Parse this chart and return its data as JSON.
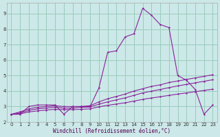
{
  "xlabel": "Windchill (Refroidissement éolien,°C)",
  "xlim": [
    -0.5,
    23.5
  ],
  "ylim": [
    2.0,
    9.7
  ],
  "yticks": [
    2,
    3,
    4,
    5,
    6,
    7,
    8,
    9
  ],
  "xticks": [
    0,
    1,
    2,
    3,
    4,
    5,
    6,
    7,
    8,
    9,
    10,
    11,
    12,
    13,
    14,
    15,
    16,
    17,
    18,
    19,
    20,
    21,
    22,
    23
  ],
  "bg_color": "#cce8e8",
  "grid_color": "#99ccbb",
  "line_color": "#882299",
  "curve_x": [
    0,
    1,
    2,
    3,
    4,
    5,
    6,
    7,
    8,
    9,
    10,
    11,
    12,
    13,
    14,
    15,
    16,
    17,
    18,
    19,
    20,
    21,
    22,
    23
  ],
  "curve_y": [
    2.5,
    2.5,
    3.0,
    3.1,
    3.1,
    3.1,
    2.5,
    3.0,
    3.0,
    3.0,
    4.2,
    6.5,
    6.6,
    7.5,
    7.7,
    9.35,
    8.9,
    8.3,
    8.1,
    5.0,
    4.7,
    4.1,
    2.5,
    3.1
  ],
  "line2_x": [
    0,
    1,
    2,
    3,
    4,
    5,
    6,
    7,
    8,
    9,
    10,
    11,
    12,
    13,
    14,
    15,
    16,
    17,
    18,
    19,
    20,
    21,
    22,
    23
  ],
  "line2_y": [
    2.5,
    2.65,
    2.85,
    2.95,
    3.0,
    3.05,
    3.0,
    3.0,
    3.0,
    3.05,
    3.3,
    3.5,
    3.65,
    3.8,
    4.0,
    4.15,
    4.3,
    4.4,
    4.55,
    4.65,
    4.75,
    4.85,
    4.95,
    5.05
  ],
  "line3_x": [
    0,
    1,
    2,
    3,
    4,
    5,
    6,
    7,
    8,
    9,
    10,
    11,
    12,
    13,
    14,
    15,
    16,
    17,
    18,
    19,
    20,
    21,
    22,
    23
  ],
  "line3_y": [
    2.5,
    2.58,
    2.75,
    2.85,
    2.9,
    2.95,
    2.9,
    2.9,
    2.95,
    2.97,
    3.15,
    3.3,
    3.43,
    3.56,
    3.72,
    3.88,
    3.99,
    4.1,
    4.22,
    4.33,
    4.43,
    4.53,
    4.63,
    4.73
  ],
  "hline_x": [
    0,
    1,
    2,
    3,
    4,
    5,
    6,
    7,
    8,
    9,
    10,
    11,
    12,
    13,
    14,
    15,
    16,
    17,
    18,
    19,
    20,
    21,
    22,
    23
  ],
  "hline_y": [
    2.5,
    2.52,
    2.65,
    2.72,
    2.77,
    2.82,
    2.8,
    2.8,
    2.82,
    2.85,
    2.98,
    3.08,
    3.16,
    3.24,
    3.35,
    3.46,
    3.55,
    3.63,
    3.72,
    3.8,
    3.88,
    3.96,
    4.04,
    4.12
  ]
}
